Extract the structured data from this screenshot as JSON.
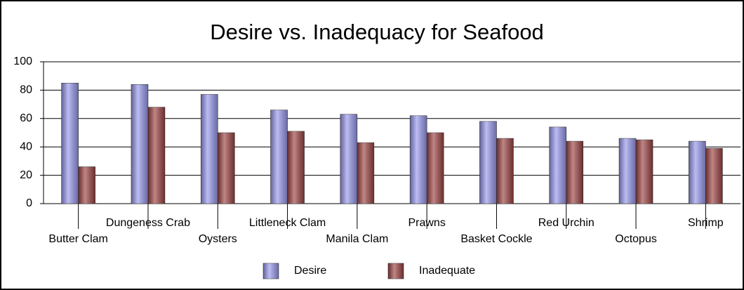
{
  "chart_data": {
    "type": "bar",
    "title": "Desire vs. Inadequacy for Seafood",
    "categories": [
      "Butter Clam",
      "Dungeness Crab",
      "Oysters",
      "Littleneck Clam",
      "Manila Clam",
      "Prawns",
      "Basket Cockle",
      "Red Urchin",
      "Octopus",
      "Shrimp"
    ],
    "series": [
      {
        "name": "Desire",
        "color": "#9999ee",
        "values": [
          85,
          84,
          77,
          66,
          63,
          62,
          58,
          54,
          46,
          44
        ]
      },
      {
        "name": "Inadequate",
        "color": "#9e4444",
        "values": [
          26,
          68,
          50,
          51,
          43,
          50,
          46,
          44,
          45,
          39
        ]
      }
    ],
    "ylim": [
      0,
      100
    ],
    "yticks": [
      0,
      20,
      40,
      60,
      80,
      100
    ],
    "grid": true,
    "legend": "bottom"
  }
}
